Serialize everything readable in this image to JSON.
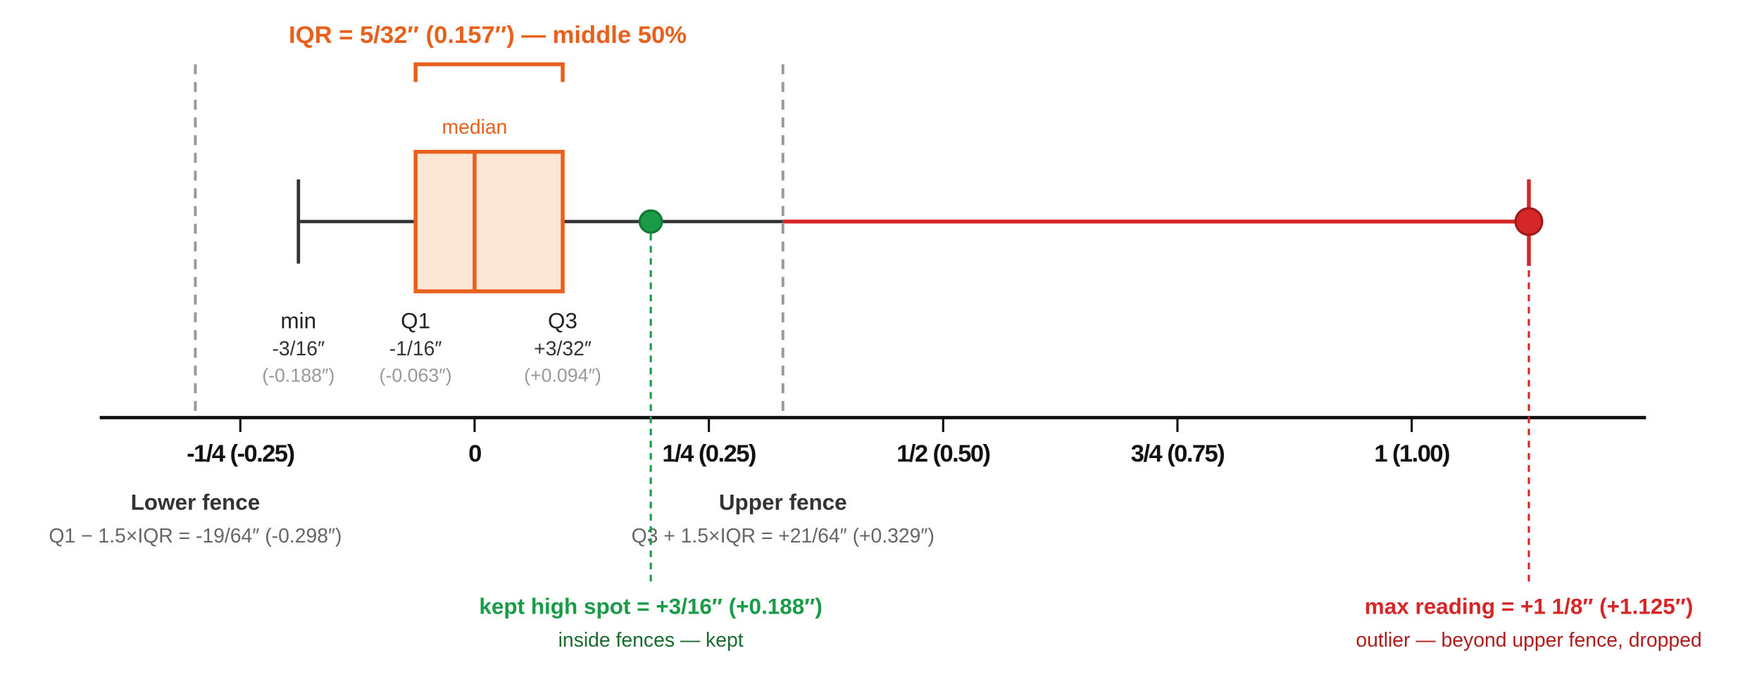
{
  "chart_data": {
    "type": "box",
    "title": "IQR = 5/32″ (0.157″) — middle 50%",
    "xlim": [
      -0.4,
      1.25
    ],
    "xticks": [
      {
        "value": -0.25,
        "label": "-1/4 (-0.25)"
      },
      0,
      {
        "value": 0.25,
        "label": "1/4 (0.25)"
      },
      {
        "value": 0.5,
        "label": "1/2 (0.50)"
      },
      {
        "value": 0.75,
        "label": "3/4 (0.75)"
      },
      {
        "value": 1,
        "label": "1 (1.00)"
      }
    ],
    "box": {
      "color": "#e8601c",
      "fill": "#fce6d6",
      "min": {
        "name": "min",
        "value": -0.188,
        "fraction": "-3/16″",
        "value_label": "(-0.188″)"
      },
      "q1": {
        "name": "Q1",
        "value": -0.063,
        "fraction": "-1/16″",
        "value_label": "(-0.063″)"
      },
      "median": {
        "name": "median",
        "value": 0
      },
      "q3": {
        "name": "Q3",
        "value": 0.094,
        "fraction": "+3/32″",
        "value_label": "(+0.094″)"
      }
    },
    "fences": [
      {
        "name": "Lower fence",
        "formula": "Q1 − 1.5×IQR = -19/64″ (-0.298″)",
        "value": -0.298
      },
      {
        "name": "Upper fence",
        "formula": "Q3 + 1.5×IQR = +21/64″ (+0.329″)",
        "value": 0.329
      }
    ],
    "points": [
      {
        "value": 0.188,
        "label": "kept high spot = +3/16″ (+0.188″)",
        "note": "inside fences — kept",
        "color": "#1a9b47"
      },
      {
        "value": 1.125,
        "label": "max reading = +1 1/8″ (+1.125″)",
        "note": "outlier — beyond upper fence, dropped",
        "color": "#d62728"
      }
    ]
  }
}
